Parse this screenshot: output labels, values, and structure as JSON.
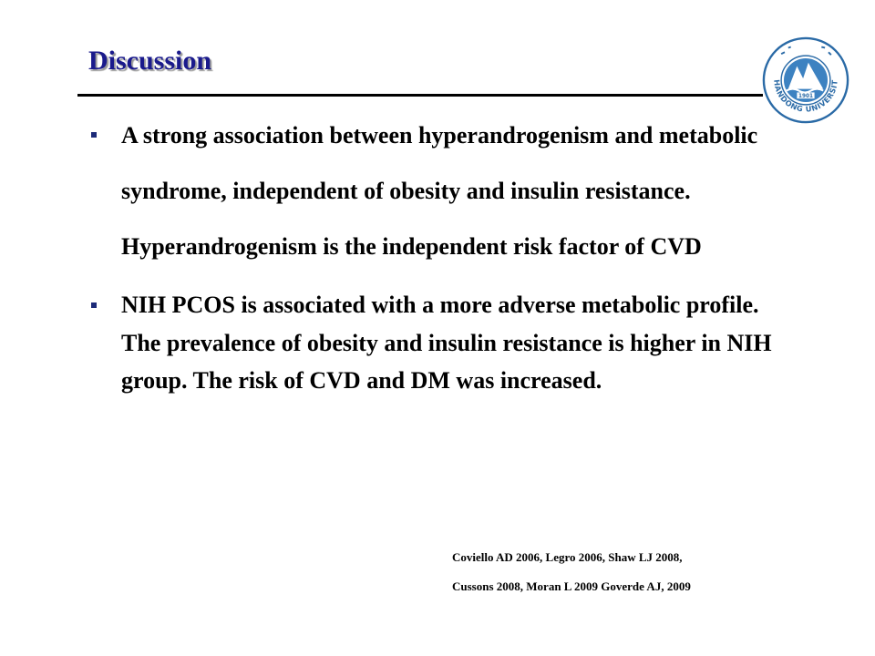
{
  "slide": {
    "title": "Discussion",
    "logo": {
      "icon": "shandong-university-emblem",
      "ring_text": "SHANDONG UNIVERSITY",
      "year": "1901",
      "colors": {
        "ring": "#2a6aa6",
        "inner": "#3d82c1",
        "white": "#ffffff"
      }
    },
    "bullets": [
      "A strong association between hyperandrogenism and metabolic syndrome, independent of obesity and insulin resistance. Hyperandrogenism is the independent risk factor of CVD",
      "NIH PCOS is associated with a more adverse metabolic profile. The prevalence of obesity and insulin resistance is higher in NIH group. The risk of CVD and DM was  increased."
    ],
    "references": [
      "Coviello AD 2006,  Legro 2006, Shaw LJ 2008,",
      "Cussons 2008, Moran L 2009 Goverde AJ, 2009"
    ],
    "colors": {
      "title": "#1a1a8c",
      "bullet_marker": "#1c2a78",
      "rule": "#000000",
      "text": "#000000"
    }
  }
}
